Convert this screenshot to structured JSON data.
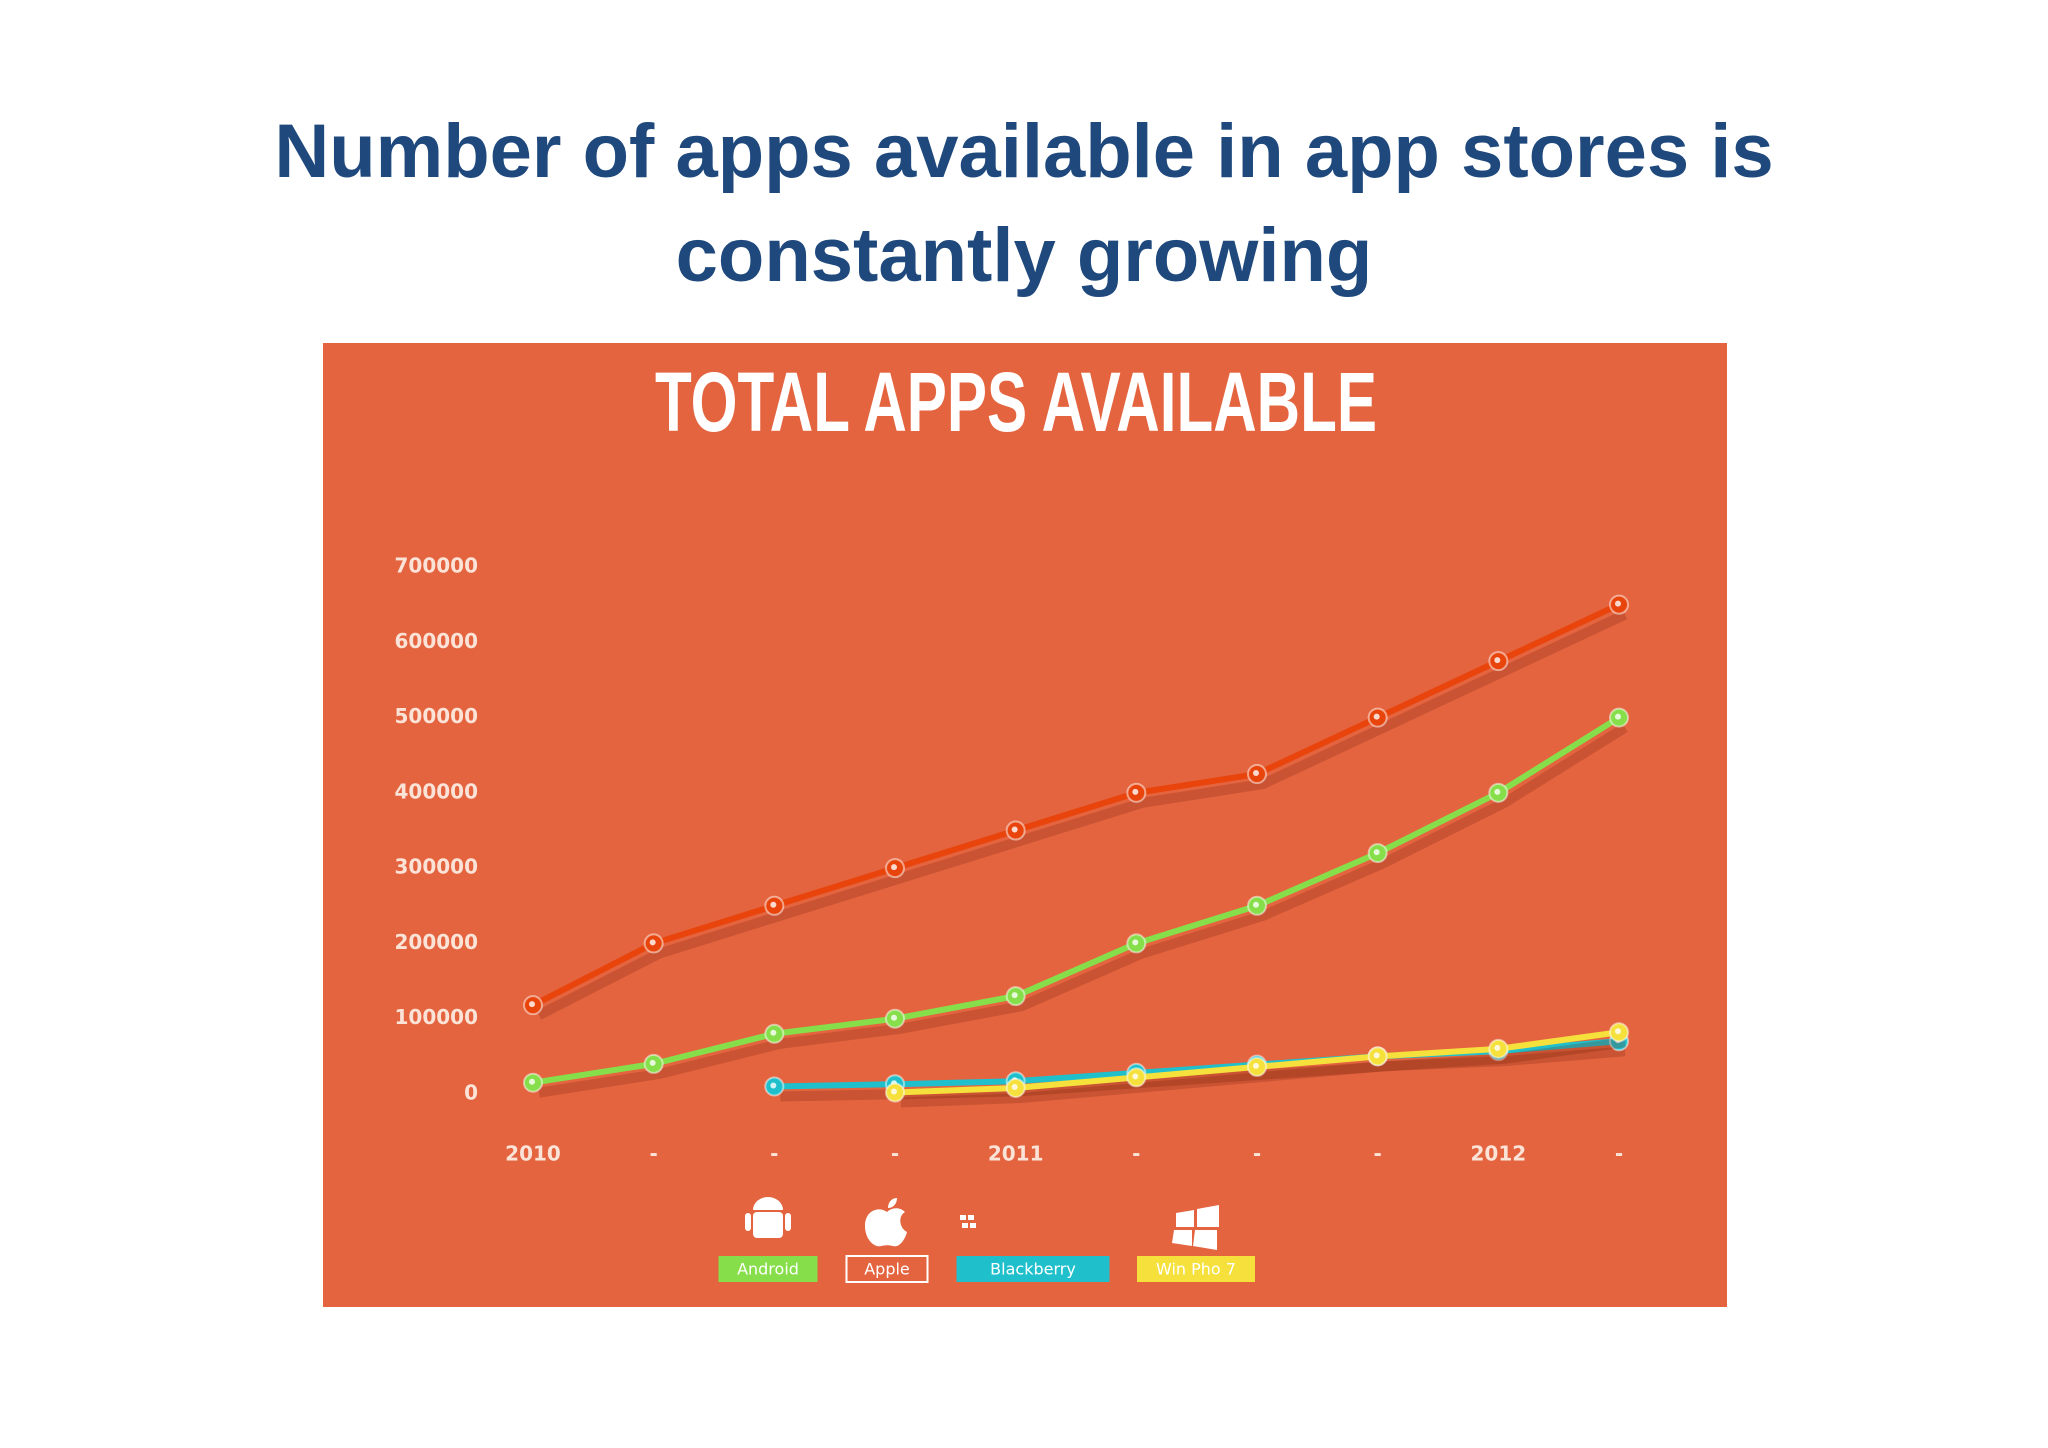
{
  "slide_title": [
    "Number of apps available in app stores is",
    "constantly growing"
  ],
  "chart_data": {
    "type": "line",
    "title": "TOTAL APPS AVAILABLE",
    "categories": [
      "2010",
      "-",
      "-",
      "-",
      "2011",
      "-",
      "-",
      "-",
      "2012",
      "-"
    ],
    "series": [
      {
        "name": "Apple",
        "color": "#e8440c",
        "values": [
          118000,
          200000,
          250000,
          300000,
          350000,
          400000,
          425000,
          500000,
          575000,
          650000
        ]
      },
      {
        "name": "Android",
        "color": "#86de4a",
        "values": [
          15000,
          40000,
          80000,
          100000,
          130000,
          200000,
          250000,
          320000,
          400000,
          500000
        ]
      },
      {
        "name": "Blackberry",
        "color": "#1fc0cc",
        "values": [
          null,
          null,
          10000,
          13000,
          17000,
          28000,
          39000,
          50000,
          57000,
          70000
        ]
      },
      {
        "name": "Win Pho 7",
        "color": "#f5e03c",
        "values": [
          null,
          null,
          null,
          2000,
          8000,
          22000,
          36000,
          50000,
          60000,
          82000
        ]
      }
    ],
    "ylim": [
      0,
      700000
    ],
    "yticks": [
      0,
      100000,
      200000,
      300000,
      400000,
      500000,
      600000,
      700000
    ],
    "background": "#e4643f",
    "grid": false
  }
}
